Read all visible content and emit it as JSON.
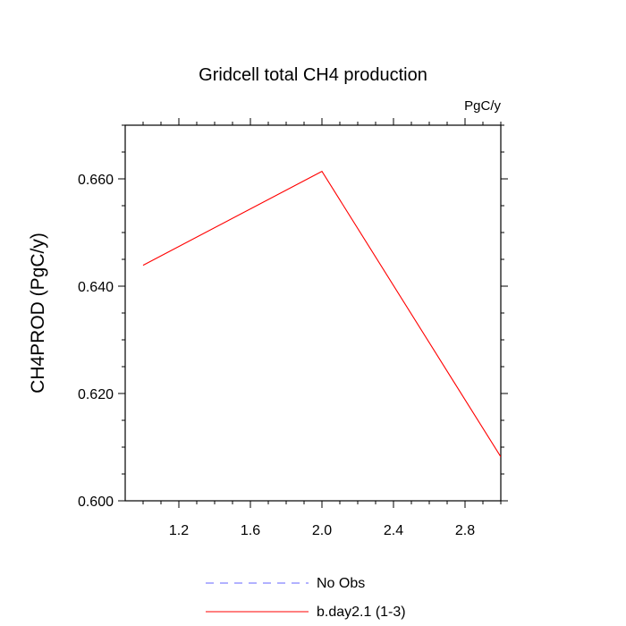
{
  "chart_data": {
    "type": "line",
    "title": "Gridcell total CH4 production",
    "units": "PgC/y",
    "ylabel": "CH4PROD  (PgC/y)",
    "xlabel": "",
    "xlim": [
      0.9,
      3.0
    ],
    "ylim": [
      0.6,
      0.67
    ],
    "xticks": [
      "1.2",
      "1.6",
      "2.0",
      "2.4",
      "2.8"
    ],
    "yticks": [
      "0.600",
      "0.620",
      "0.640",
      "0.660"
    ],
    "series": [
      {
        "name": "b.day2.1 (1-3)",
        "color": "#ff0000",
        "style": "solid",
        "x": [
          1,
          2,
          3
        ],
        "y": [
          0.6439,
          0.6614,
          0.6082
        ]
      }
    ],
    "legend": [
      {
        "label": "No Obs",
        "color": "#6666ff",
        "style": "dashed"
      },
      {
        "label": "b.day2.1 (1-3)",
        "color": "#ff0000",
        "style": "solid"
      }
    ],
    "legend_placement": "bottom-center",
    "grid": false
  }
}
